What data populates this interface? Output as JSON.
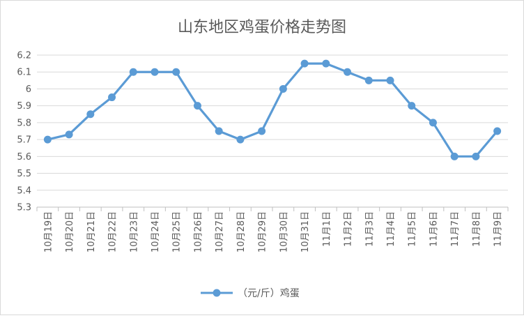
{
  "chart_data": {
    "type": "line",
    "title": "山东地区鸡蛋价格走势图",
    "categories": [
      "10月19日",
      "10月20日",
      "10月21日",
      "10月22日",
      "10月23日",
      "10月24日",
      "10月25日",
      "10月26日",
      "10月27日",
      "10月28日",
      "10月29日",
      "10月30日",
      "10月31日",
      "11月1日",
      "11月2日",
      "11月3日",
      "11月4日",
      "11月5日",
      "11月6日",
      "11月7日",
      "11月8日",
      "11月9日"
    ],
    "series": [
      {
        "name": "（元/斤）鸡蛋",
        "color": "#5b9bd5",
        "values": [
          5.7,
          5.73,
          5.85,
          5.95,
          6.1,
          6.1,
          6.1,
          5.9,
          5.75,
          5.7,
          5.75,
          6.0,
          6.15,
          6.15,
          6.1,
          6.05,
          6.05,
          5.9,
          5.8,
          5.6,
          5.6,
          5.75
        ]
      }
    ],
    "ylim": [
      5.3,
      6.2
    ],
    "yticks": [
      "5.3",
      "5.4",
      "5.5",
      "5.6",
      "5.7",
      "5.8",
      "5.9",
      "6",
      "6.1",
      "6.2"
    ],
    "ytick_values": [
      5.3,
      5.4,
      5.5,
      5.6,
      5.7,
      5.8,
      5.9,
      6.0,
      6.1,
      6.2
    ],
    "grid": true,
    "legend_position": "bottom"
  }
}
